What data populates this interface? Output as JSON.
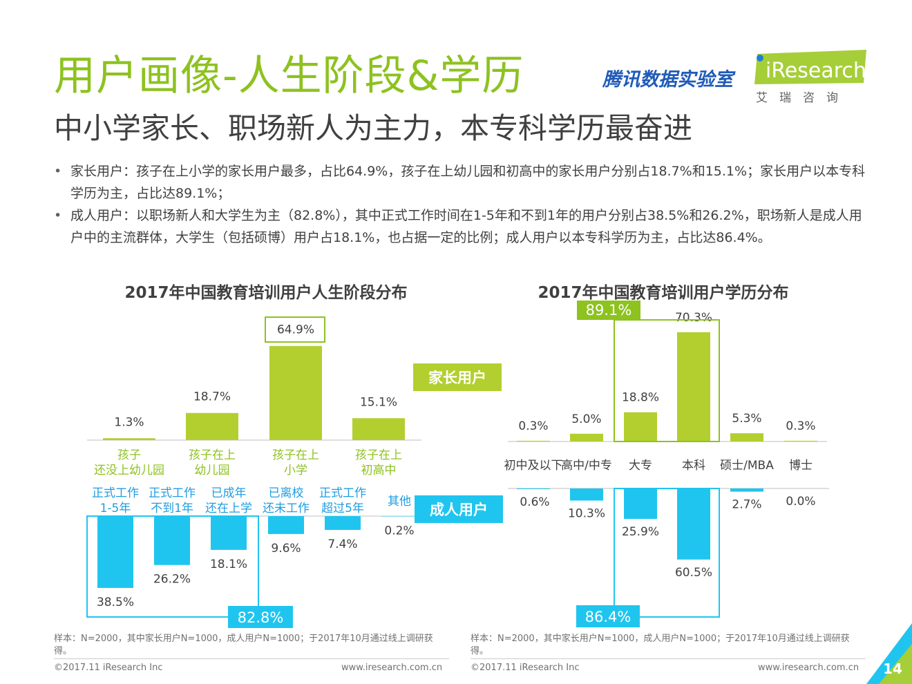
{
  "header": {
    "title": "用户画像-人生阶段&学历",
    "subtitle": "中小学家长、职场新人为主力，本专科学历最奋进",
    "tencent_logo": "腾讯数据实验室",
    "iresearch_logo": "iResearch",
    "iresearch_cn": "艾　瑞　咨　询"
  },
  "bullets": [
    "家长用户：孩子在上小学的家长用户最多，占比64.9%，孩子在上幼儿园和初高中的家长用户分别占18.7%和15.1%；家长用户以本专科学历为主，占比达89.1%；",
    "成人用户：以职场新人和大学生为主（82.8%），其中正式工作时间在1-5年和不到1年的用户分别占38.5%和26.2%，职场新人是成人用户中的主流群体，大学生（包括硕博）用户占18.1%，也占据一定的比例；成人用户以本专科学历为主，占比达86.4%。"
  ],
  "chart_data": [
    {
      "type": "bar",
      "title": "2017年中国教育培训用户人生阶段分布",
      "series": [
        {
          "name": "家长用户",
          "categories": [
            "孩子\n还没上幼儿园",
            "孩子在上\n幼儿园",
            "孩子在上\n小学",
            "孩子在上\n初高中"
          ],
          "values": [
            1.3,
            18.7,
            64.9,
            15.1
          ],
          "labels": [
            "1.3%",
            "18.7%",
            "64.9%",
            "15.1%"
          ],
          "color": "#b2cf2f"
        },
        {
          "name": "成人用户",
          "categories": [
            "正式工作\n1-5年",
            "正式工作\n不到1年",
            "已成年\n还在上学",
            "已离校\n还未工作",
            "正式工作\n超过5年",
            "其他"
          ],
          "values": [
            38.5,
            26.2,
            18.1,
            9.6,
            7.4,
            0.2
          ],
          "labels": [
            "38.5%",
            "26.2%",
            "18.1%",
            "9.6%",
            "7.4%",
            "0.2%"
          ],
          "color": "#1fc5ef"
        }
      ],
      "callouts": {
        "top": "64.9%",
        "bottom": "82.8%"
      }
    },
    {
      "type": "bar",
      "title": "2017年中国教育培训用户学历分布",
      "categories": [
        "初中及以下",
        "高中/中专",
        "大专",
        "本科",
        "硕士/MBA",
        "博士"
      ],
      "series": [
        {
          "name": "家长用户",
          "values": [
            0.3,
            5.0,
            18.8,
            70.3,
            5.3,
            0.3
          ],
          "labels": [
            "0.3%",
            "5.0%",
            "18.8%",
            "70.3%",
            "5.3%",
            "0.3%"
          ],
          "color": "#b2cf2f"
        },
        {
          "name": "成人用户",
          "values": [
            0.6,
            10.3,
            25.9,
            60.5,
            2.7,
            0.0
          ],
          "labels": [
            "0.6%",
            "10.3%",
            "25.9%",
            "60.5%",
            "2.7%",
            "0.0%"
          ],
          "color": "#1fc5ef"
        }
      ],
      "callouts": {
        "top": "89.1%",
        "bottom": "86.4%"
      }
    }
  ],
  "legend": {
    "parent": "家长用户",
    "adult": "成人用户"
  },
  "footer": {
    "note": "样本：N=2000，其中家长用户N=1000，成人用户N=1000；于2017年10月通过线上调研获得。",
    "copyright": "©2017.11 iResearch Inc",
    "url": "www.iresearch.com.cn",
    "page_number": "14"
  },
  "colors": {
    "green": "#b2cf2f",
    "green_dark": "#8dc21f",
    "blue": "#1fc5ef",
    "label_green": "#8dc21f",
    "label_blue": "#1f9de0"
  }
}
